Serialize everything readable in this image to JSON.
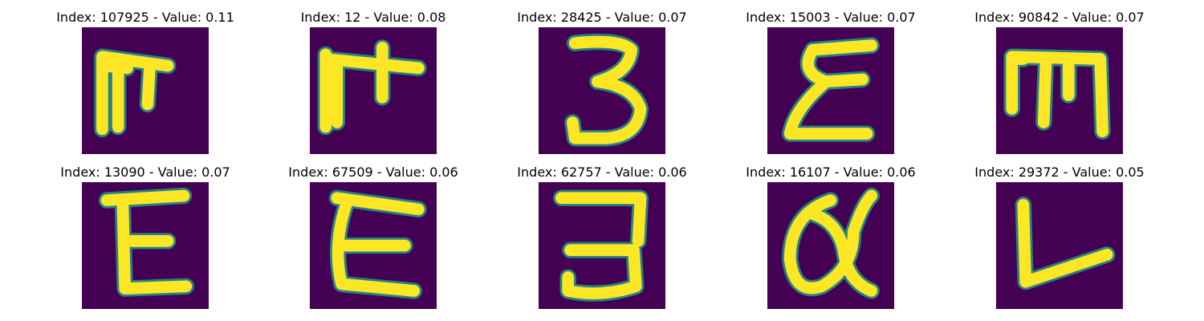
{
  "figure": {
    "colors": {
      "background": "#440154",
      "halo": "#21918c",
      "glyph": "#fde725"
    },
    "panels": [
      {
        "title": "Index: 107925 - Value: 0.11",
        "glyph_icon": "character-glyph-icon"
      },
      {
        "title": "Index: 12 - Value: 0.08",
        "glyph_icon": "character-glyph-icon"
      },
      {
        "title": "Index: 28425 - Value: 0.07",
        "glyph_icon": "character-glyph-icon"
      },
      {
        "title": "Index: 15003 - Value: 0.07",
        "glyph_icon": "character-glyph-icon"
      },
      {
        "title": "Index: 90842 - Value: 0.07",
        "glyph_icon": "character-glyph-icon"
      },
      {
        "title": "Index: 13090 - Value: 0.07",
        "glyph_icon": "character-glyph-icon"
      },
      {
        "title": "Index: 67509 - Value: 0.06",
        "glyph_icon": "character-glyph-icon"
      },
      {
        "title": "Index: 62757 - Value: 0.06",
        "glyph_icon": "character-glyph-icon"
      },
      {
        "title": "Index: 16107 - Value: 0.06",
        "glyph_icon": "character-glyph-icon"
      },
      {
        "title": "Index: 29372 - Value: 0.05",
        "glyph_icon": "character-glyph-icon"
      }
    ]
  }
}
